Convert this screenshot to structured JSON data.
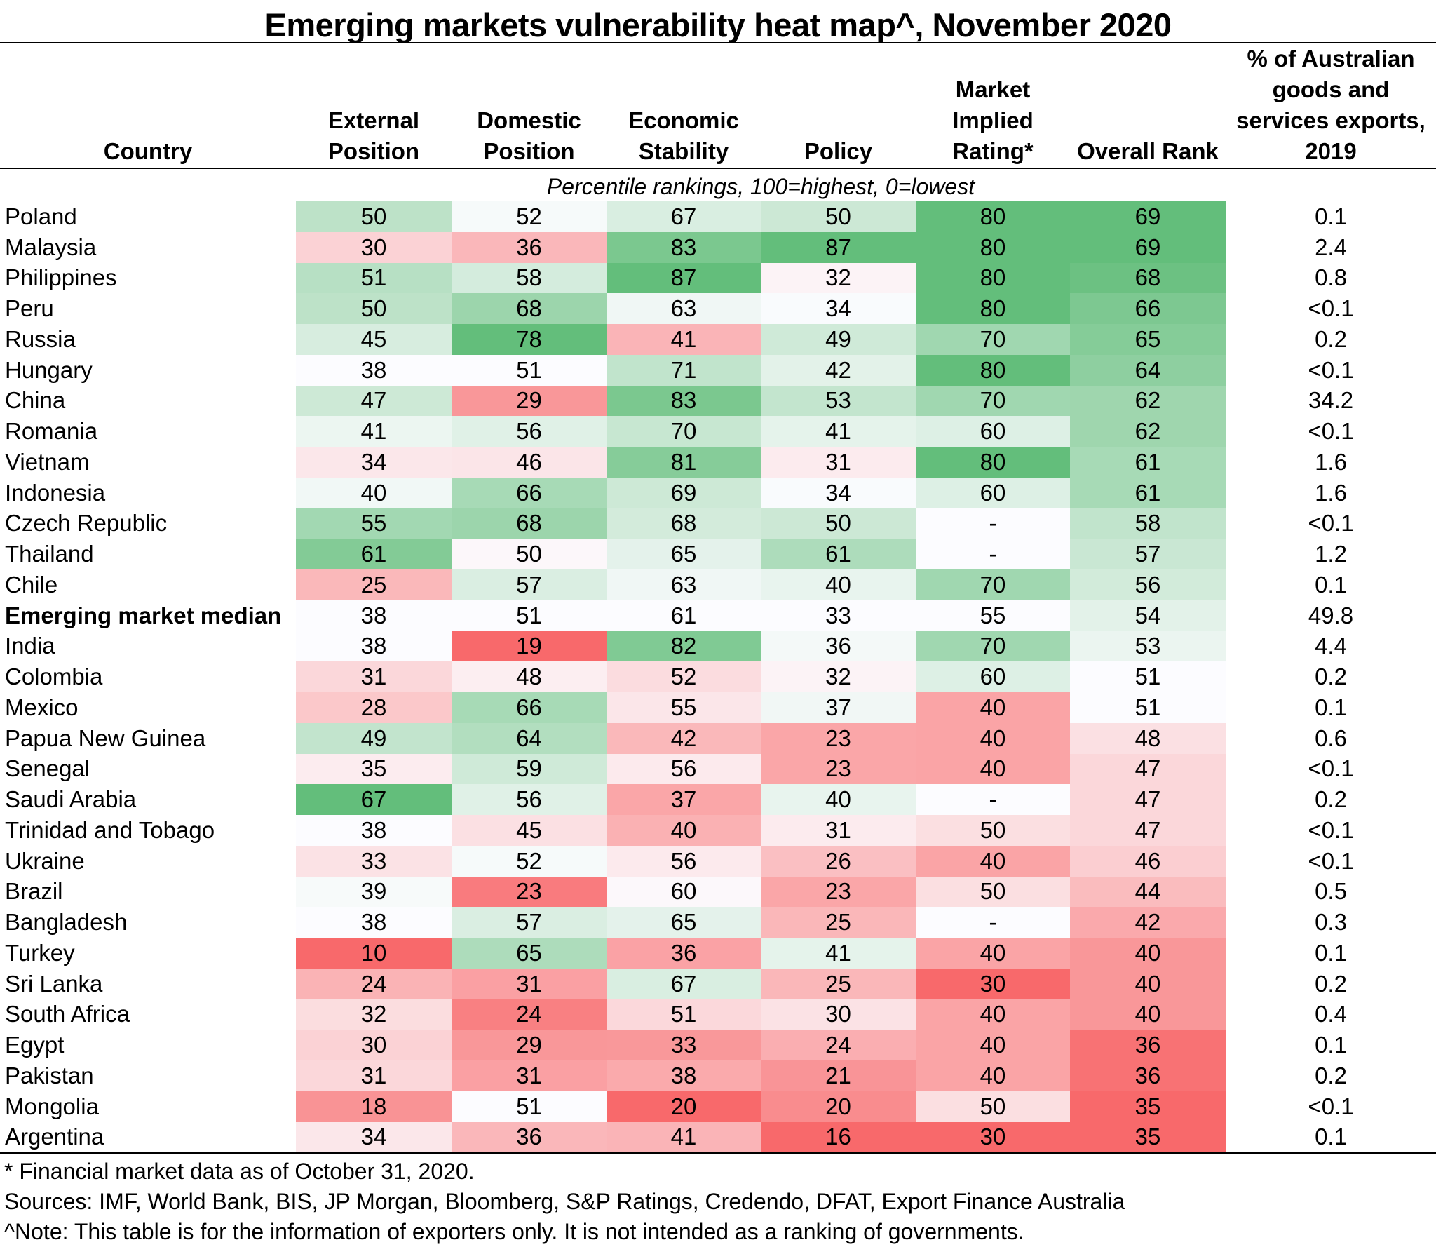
{
  "title": "Emerging markets vulnerability heat map^, November 2020",
  "subtitle": "Percentile rankings, 100=highest, 0=lowest",
  "colors": {
    "low": "#F8696B",
    "mid": "#FCFCFF",
    "high": "#63BE7B"
  },
  "headers": [
    [
      "Country"
    ],
    [
      "External",
      "Position"
    ],
    [
      "Domestic",
      "Position"
    ],
    [
      "Economic",
      "Stability"
    ],
    [
      "Policy"
    ],
    [
      "Market",
      "Implied",
      "Rating*"
    ],
    [
      "Overall Rank"
    ],
    [
      "% of Australian",
      "goods and",
      "services exports,",
      "2019"
    ]
  ],
  "footnotes": [
    "* Financial market data as of October 31, 2020.",
    "Sources: IMF, World Bank, BIS, JP Morgan, Bloomberg, S&P Ratings, Credendo, DFAT, Export Finance Australia",
    "^Note: This table is for the information of exporters only. It is not intended as a ranking of governments."
  ],
  "chart_data": {
    "type": "heatmap",
    "title": "Emerging markets vulnerability heat map^, November 2020",
    "subtitle": "Percentile rankings, 100=highest, 0=lowest",
    "columns": [
      "External Position",
      "Domestic Position",
      "Economic Stability",
      "Policy",
      "Market Implied Rating*",
      "Overall Rank",
      "% of Australian goods and services exports, 2019"
    ],
    "color_scale": "3-color per column: red (lowest) - white (median) - green (highest)",
    "rows": [
      {
        "country": "Poland",
        "values": [
          50,
          52,
          67,
          50,
          "80",
          69
        ],
        "exports": "0.1"
      },
      {
        "country": "Malaysia",
        "values": [
          30,
          36,
          83,
          87,
          "80",
          69
        ],
        "exports": "2.4"
      },
      {
        "country": "Philippines",
        "values": [
          51,
          58,
          87,
          32,
          "80",
          68
        ],
        "exports": "0.8"
      },
      {
        "country": "Peru",
        "values": [
          50,
          68,
          63,
          34,
          "80",
          66
        ],
        "exports": "<0.1"
      },
      {
        "country": "Russia",
        "values": [
          45,
          78,
          41,
          49,
          "70",
          65
        ],
        "exports": "0.2"
      },
      {
        "country": "Hungary",
        "values": [
          38,
          51,
          71,
          42,
          "80",
          64
        ],
        "exports": "<0.1"
      },
      {
        "country": "China",
        "values": [
          47,
          29,
          83,
          53,
          "70",
          62
        ],
        "exports": "34.2"
      },
      {
        "country": "Romania",
        "values": [
          41,
          56,
          70,
          41,
          "60",
          62
        ],
        "exports": "<0.1"
      },
      {
        "country": "Vietnam",
        "values": [
          34,
          46,
          81,
          31,
          "80",
          61
        ],
        "exports": "1.6"
      },
      {
        "country": "Indonesia",
        "values": [
          40,
          66,
          69,
          34,
          "60",
          61
        ],
        "exports": "1.6"
      },
      {
        "country": "Czech Republic",
        "values": [
          55,
          68,
          68,
          50,
          "-",
          58
        ],
        "exports": "<0.1"
      },
      {
        "country": "Thailand",
        "values": [
          61,
          50,
          65,
          61,
          "-",
          57
        ],
        "exports": "1.2"
      },
      {
        "country": "Chile",
        "values": [
          25,
          57,
          63,
          40,
          "70",
          56
        ],
        "exports": "0.1"
      },
      {
        "country": "Emerging market median",
        "bold": true,
        "values": [
          38,
          51,
          61,
          33,
          "55",
          54
        ],
        "exports": "49.8"
      },
      {
        "country": "India",
        "values": [
          38,
          19,
          82,
          36,
          "70",
          53
        ],
        "exports": "4.4"
      },
      {
        "country": "Colombia",
        "values": [
          31,
          48,
          52,
          32,
          "60",
          51
        ],
        "exports": "0.2"
      },
      {
        "country": "Mexico",
        "values": [
          28,
          66,
          55,
          37,
          "40",
          51
        ],
        "exports": "0.1"
      },
      {
        "country": "Papua New Guinea",
        "values": [
          49,
          64,
          42,
          23,
          "40",
          48
        ],
        "exports": "0.6"
      },
      {
        "country": "Senegal",
        "values": [
          35,
          59,
          56,
          23,
          "40",
          47
        ],
        "exports": "<0.1"
      },
      {
        "country": "Saudi Arabia",
        "values": [
          67,
          56,
          37,
          40,
          "-",
          47
        ],
        "exports": "0.2"
      },
      {
        "country": "Trinidad and Tobago",
        "values": [
          38,
          45,
          40,
          31,
          "50",
          47
        ],
        "exports": "<0.1"
      },
      {
        "country": "Ukraine",
        "values": [
          33,
          52,
          56,
          26,
          "40",
          46
        ],
        "exports": "<0.1"
      },
      {
        "country": "Brazil",
        "values": [
          39,
          23,
          60,
          23,
          "50",
          44
        ],
        "exports": "0.5"
      },
      {
        "country": "Bangladesh",
        "values": [
          38,
          57,
          65,
          25,
          "-",
          42
        ],
        "exports": "0.3"
      },
      {
        "country": "Turkey",
        "values": [
          10,
          65,
          36,
          41,
          "40",
          40
        ],
        "exports": "0.1"
      },
      {
        "country": "Sri Lanka",
        "values": [
          24,
          31,
          67,
          25,
          "30",
          40
        ],
        "exports": "0.2"
      },
      {
        "country": "South Africa",
        "values": [
          32,
          24,
          51,
          30,
          "40",
          40
        ],
        "exports": "0.4"
      },
      {
        "country": "Egypt",
        "values": [
          30,
          29,
          33,
          24,
          "40",
          36
        ],
        "exports": "0.1"
      },
      {
        "country": "Pakistan",
        "values": [
          31,
          31,
          38,
          21,
          "40",
          36
        ],
        "exports": "0.2"
      },
      {
        "country": "Mongolia",
        "values": [
          18,
          51,
          20,
          20,
          "50",
          35
        ],
        "exports": "<0.1"
      },
      {
        "country": "Argentina",
        "values": [
          34,
          36,
          41,
          16,
          "30",
          35
        ],
        "exports": "0.1"
      }
    ]
  }
}
